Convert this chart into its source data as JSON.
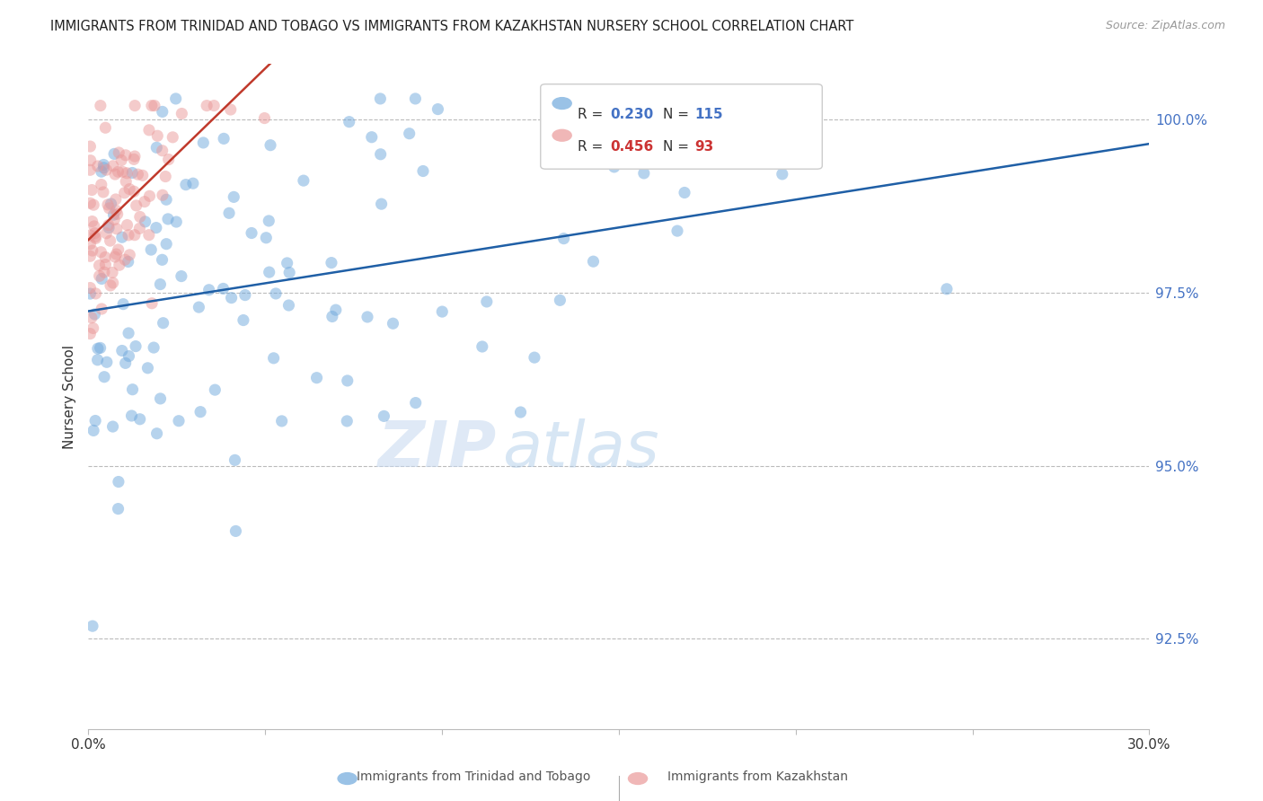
{
  "title": "IMMIGRANTS FROM TRINIDAD AND TOBAGO VS IMMIGRANTS FROM KAZAKHSTAN NURSERY SCHOOL CORRELATION CHART",
  "source": "Source: ZipAtlas.com",
  "ylabel": "Nursery School",
  "yticks": [
    92.5,
    95.0,
    97.5,
    100.0
  ],
  "ytick_labels": [
    "92.5%",
    "95.0%",
    "97.5%",
    "100.0%"
  ],
  "xmin": 0.0,
  "xmax": 30.0,
  "ymin": 91.2,
  "ymax": 100.8,
  "blue_R": 0.23,
  "blue_N": 115,
  "pink_R": 0.456,
  "pink_N": 93,
  "blue_color": "#6fa8dc",
  "pink_color": "#ea9999",
  "blue_line_color": "#1f5fa6",
  "pink_line_color": "#c0392b",
  "legend_label_blue": "Immigrants from Trinidad and Tobago",
  "legend_label_pink": "Immigrants from Kazakhstan",
  "watermark_zip": "ZIP",
  "watermark_atlas": "atlas",
  "background_color": "#ffffff"
}
